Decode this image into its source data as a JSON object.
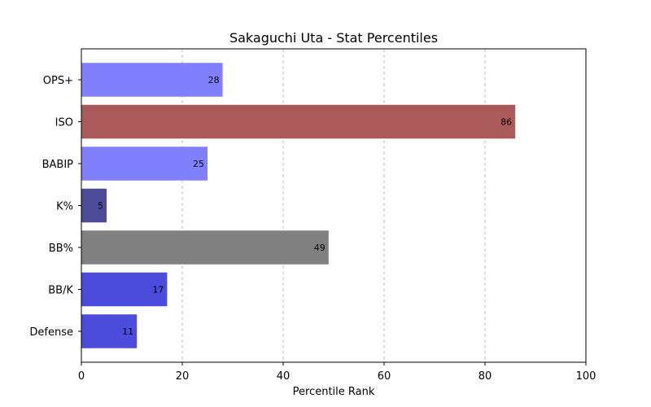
{
  "chart_data": {
    "type": "bar",
    "orientation": "horizontal",
    "title": "Sakaguchi Uta - Stat Percentiles",
    "xlabel": "Percentile Rank",
    "ylabel": "",
    "xlim": [
      0,
      100
    ],
    "xticks": [
      0,
      20,
      40,
      60,
      80,
      100
    ],
    "grid": "x-dashed",
    "categories": [
      "OPS+",
      "ISO",
      "BABIP",
      "K%",
      "BB%",
      "BB/K",
      "Defense"
    ],
    "values": [
      28,
      86,
      25,
      5,
      49,
      17,
      11
    ],
    "colors": [
      "#8080ff",
      "#ab5a5a",
      "#8080ff",
      "#4b4b98",
      "#808080",
      "#4b4bdc",
      "#4b4bdc"
    ]
  }
}
